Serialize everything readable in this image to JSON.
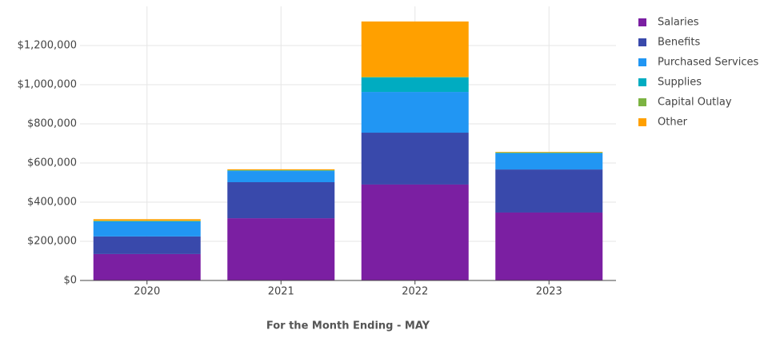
{
  "chart_data": {
    "type": "stacked_bar",
    "x_label": "For the Month Ending - MAY",
    "categories": [
      "2020",
      "2021",
      "2022",
      "2023"
    ],
    "series": [
      {
        "name": "Salaries",
        "color": "#7b1fa2",
        "values": [
          135000,
          318000,
          490000,
          347000
        ]
      },
      {
        "name": "Benefits",
        "color": "#3949ab",
        "values": [
          90000,
          184000,
          265000,
          220000
        ]
      },
      {
        "name": "Purchased Services",
        "color": "#2196f3",
        "values": [
          75000,
          57000,
          208000,
          82000
        ]
      },
      {
        "name": "Supplies",
        "color": "#00acc1",
        "values": [
          3000,
          3000,
          74000,
          3000
        ]
      },
      {
        "name": "Capital Outlay",
        "color": "#7cb342",
        "values": [
          2000,
          1000,
          3000,
          2000
        ]
      },
      {
        "name": "Other",
        "color": "#ffa000",
        "values": [
          8000,
          5000,
          283000,
          3000
        ]
      }
    ],
    "ylim": [
      0,
      1400000
    ],
    "yticks": [
      {
        "value": 0,
        "label": "$0"
      },
      {
        "value": 200000,
        "label": "$200,000"
      },
      {
        "value": 400000,
        "label": "$400,000"
      },
      {
        "value": 600000,
        "label": "$600,000"
      },
      {
        "value": 800000,
        "label": "$800,000"
      },
      {
        "value": 1000000,
        "label": "$1,000,000"
      },
      {
        "value": 1200000,
        "label": "$1,200,000"
      }
    ],
    "grid": true,
    "legend": "right"
  }
}
